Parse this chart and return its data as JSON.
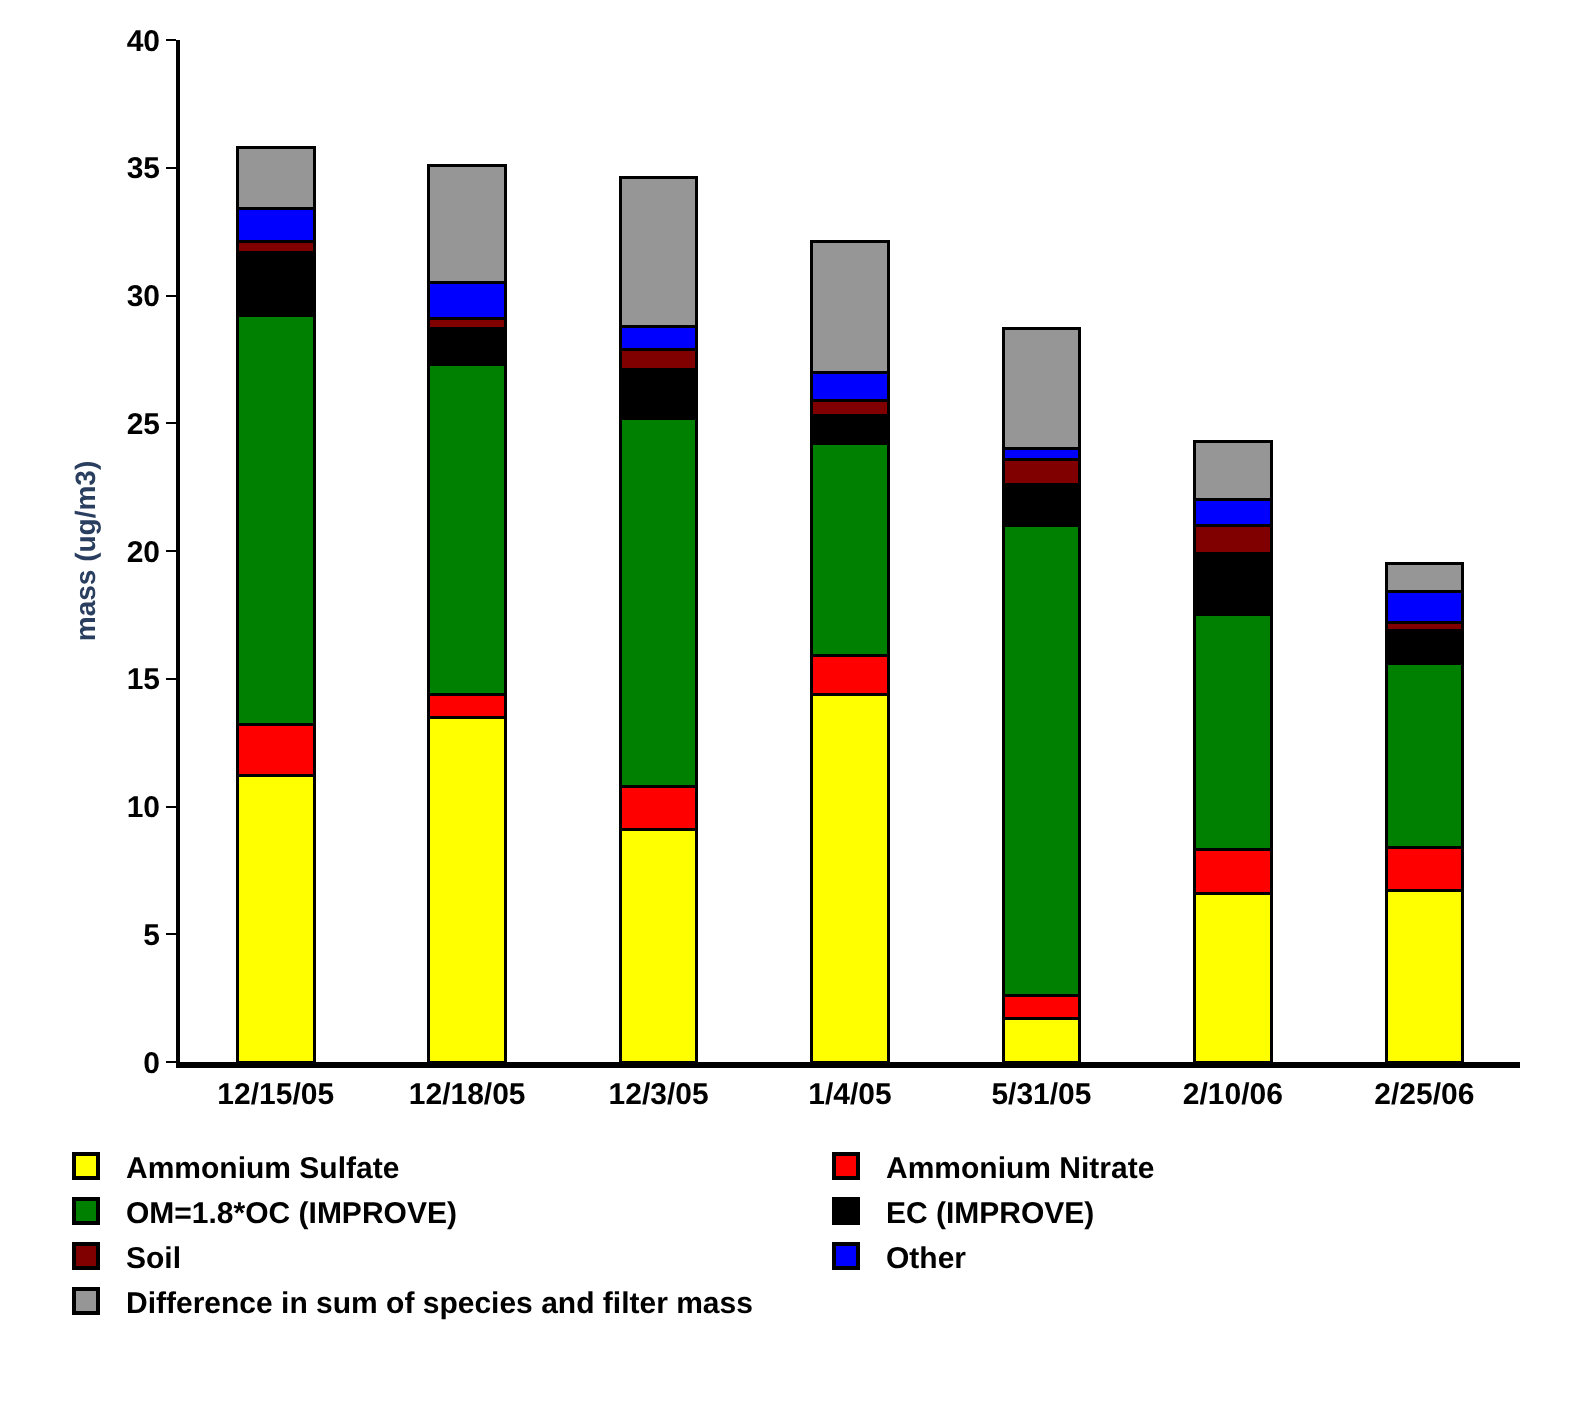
{
  "chart_data": {
    "type": "bar",
    "stacked": true,
    "ylabel": "mass (ug/m3)",
    "categories": [
      "12/15/05",
      "12/18/05",
      "12/3/05",
      "1/4/05",
      "5/31/05",
      "2/10/06",
      "2/25/06"
    ],
    "series": [
      {
        "name": "Ammonium Sulfate",
        "color": "#ffff00",
        "values": [
          11.2,
          13.5,
          9.1,
          14.4,
          1.7,
          6.6,
          6.7
        ]
      },
      {
        "name": "Ammonium Nitrate",
        "color": "#ff0000",
        "values": [
          2.0,
          0.9,
          1.7,
          1.5,
          0.9,
          1.7,
          1.7
        ]
      },
      {
        "name": "OM=1.8*OC (IMPROVE)",
        "color": "#008000",
        "values": [
          16.0,
          12.9,
          14.4,
          8.3,
          18.4,
          9.2,
          7.2
        ]
      },
      {
        "name": "EC (IMPROVE)",
        "color": "#000000",
        "values": [
          2.5,
          1.4,
          1.9,
          1.1,
          1.6,
          2.4,
          1.3
        ]
      },
      {
        "name": "Soil",
        "color": "#800000",
        "values": [
          0.4,
          0.4,
          0.8,
          0.6,
          1.0,
          1.1,
          0.3
        ]
      },
      {
        "name": "Other",
        "color": "#0000ff",
        "values": [
          1.3,
          1.4,
          0.9,
          1.1,
          0.4,
          1.0,
          1.2
        ]
      },
      {
        "name": "Difference in sum of species and filter mass",
        "color": "#969696",
        "values": [
          2.4,
          4.6,
          5.8,
          5.1,
          4.7,
          2.3,
          1.1
        ]
      }
    ],
    "ylim": [
      0,
      40
    ],
    "yticks": [
      0,
      5,
      10,
      15,
      20,
      25,
      30,
      35,
      40
    ],
    "legend": "bottom"
  }
}
